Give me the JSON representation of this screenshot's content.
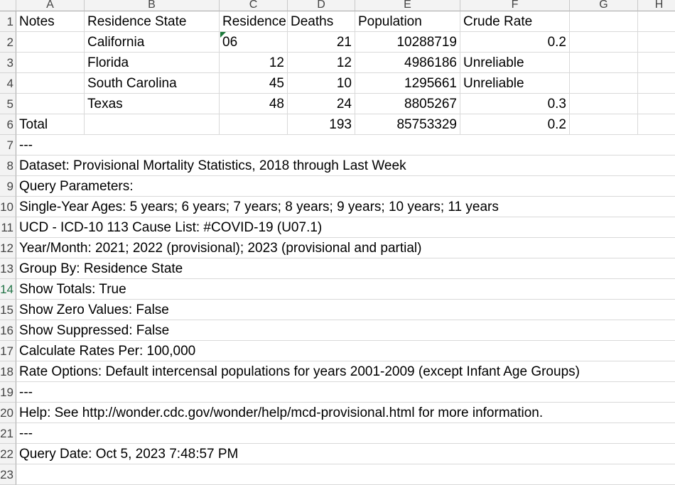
{
  "columns": [
    "A",
    "B",
    "C",
    "D",
    "E",
    "F",
    "G",
    "H"
  ],
  "row_numbers": [
    "1",
    "2",
    "3",
    "4",
    "5",
    "6",
    "7",
    "8",
    "9",
    "10",
    "11",
    "12",
    "13",
    "14",
    "15",
    "16",
    "17",
    "18",
    "19",
    "20",
    "21",
    "22",
    "23"
  ],
  "header_row": {
    "notes": "Notes",
    "residence_state": "Residence State",
    "residence": "Residence",
    "deaths": "Deaths",
    "population": "Population",
    "crude_rate": "Crude Rate"
  },
  "data_rows": [
    {
      "state": "California",
      "residence": "06",
      "deaths": "21",
      "population": "10288719",
      "crude_rate": "0.2"
    },
    {
      "state": "Florida",
      "residence": "12",
      "deaths": "12",
      "population": "4986186",
      "crude_rate": "Unreliable"
    },
    {
      "state": "South Carolina",
      "residence": "45",
      "deaths": "10",
      "population": "1295661",
      "crude_rate": "Unreliable"
    },
    {
      "state": "Texas",
      "residence": "48",
      "deaths": "24",
      "population": "8805267",
      "crude_rate": "0.3"
    }
  ],
  "total_row": {
    "label": "Total",
    "deaths": "193",
    "population": "85753329",
    "crude_rate": "0.2"
  },
  "notes_lines": [
    "---",
    "Dataset: Provisional Mortality Statistics, 2018 through Last Week",
    "Query Parameters:",
    "Single-Year Ages: 5 years; 6 years; 7 years; 8 years; 9 years; 10 years; 11 years",
    "UCD - ICD-10 113 Cause List: #COVID-19 (U07.1)",
    "Year/Month: 2021; 2022 (provisional); 2023 (provisional and partial)",
    "Group By: Residence State",
    "Show Totals: True",
    "Show Zero Values: False",
    "Show Suppressed: False",
    "Calculate Rates Per: 100,000",
    "Rate Options: Default intercensal populations for years 2001-2009 (except Infant Age Groups)",
    "---",
    "Help: See http://wonder.cdc.gov/wonder/help/mcd-provisional.html for more information.",
    "---",
    "Query Date: Oct 5, 2023 7:48:57 PM"
  ]
}
